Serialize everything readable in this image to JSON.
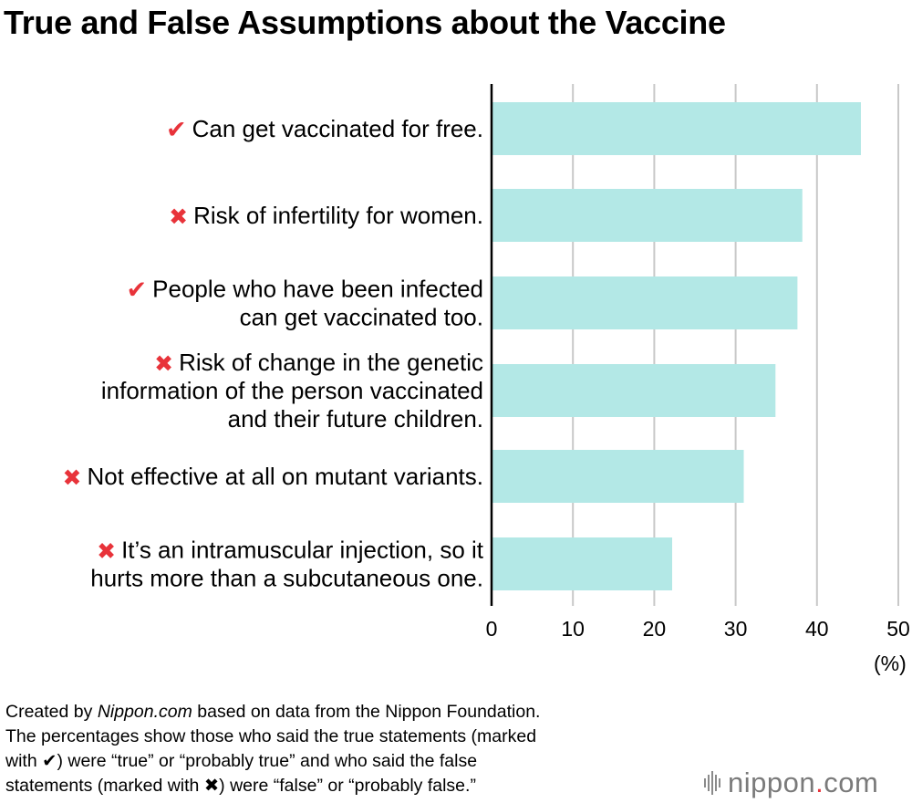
{
  "title": "True and False Assumptions about the Vaccine",
  "chart_data": {
    "type": "bar",
    "orientation": "horizontal",
    "title": "True and False Assumptions about the Vaccine",
    "xlabel": "",
    "unit_label": "(%)",
    "xlim": [
      0,
      50
    ],
    "xticks": [
      0,
      10,
      20,
      30,
      40,
      50
    ],
    "grid": true,
    "bar_color": "#b3e8e6",
    "categories": [
      {
        "mark": "true",
        "lines": [
          "Can get vaccinated for free."
        ],
        "value": 45.4
      },
      {
        "mark": "false",
        "lines": [
          "Risk of infertility for women."
        ],
        "value": 38.2
      },
      {
        "mark": "true",
        "lines": [
          "People who have been infected",
          "can get vaccinated too."
        ],
        "value": 37.6
      },
      {
        "mark": "false",
        "lines": [
          "Risk of change in the genetic",
          "information of the person vaccinated",
          "and their future children."
        ],
        "value": 34.9
      },
      {
        "mark": "false",
        "lines": [
          "Not effective at all on mutant variants."
        ],
        "value": 31.0
      },
      {
        "mark": "false",
        "lines": [
          "It’s an intramuscular injection, so it",
          "hurts more than a subcutaneous one."
        ],
        "value": 22.2
      }
    ]
  },
  "marks": {
    "true": "✔",
    "false": "✖"
  },
  "colors": {
    "mark": "#e8333a",
    "bar": "#b3e8e6",
    "grid": "#c8c8c8"
  },
  "footnote": {
    "line1_pre": "Created by ",
    "line1_brand": "Nippon.com",
    "line1_post": " based on data from the Nippon Foundation.",
    "line2": "The percentages show those who said the true statements (marked",
    "line3_pre": "with ",
    "line3_sym": "✔",
    "line3_post": ") were “true” or “probably true” and who said the false",
    "line4_pre": "statements (marked with ",
    "line4_sym": "✖",
    "line4_post": ") were “false” or “probably false.”"
  },
  "logo": {
    "text_main": "nippon",
    "text_dot": ".",
    "text_tail": "com"
  }
}
